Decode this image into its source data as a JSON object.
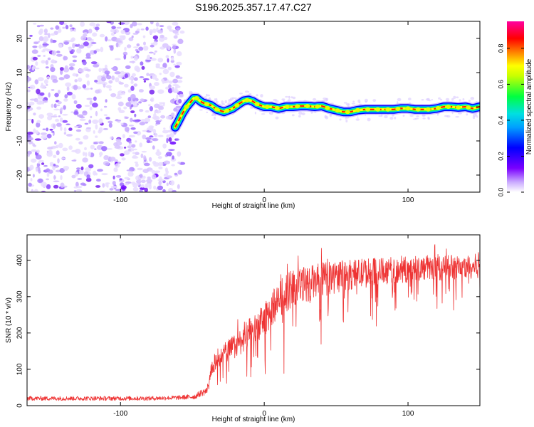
{
  "title": "S196.2025.357.17.47.C27",
  "chart_data": [
    {
      "type": "heatmap",
      "title": "S196.2025.357.17.47.C27",
      "xlabel": "Height of straight line (km)",
      "ylabel": "Frequency (Hz)",
      "xlim": [
        -165,
        150
      ],
      "ylim": [
        -25,
        25
      ],
      "xticks": [
        -100,
        0,
        100
      ],
      "yticks": [
        -20,
        -10,
        0,
        10,
        20
      ],
      "colorbar": {
        "label": "Normalized spectral amplitude",
        "range": [
          0,
          0.95
        ],
        "ticks": [
          "0.0",
          "0.2",
          "0.4",
          "0.6",
          "0.8"
        ],
        "tick_values": [
          0.0,
          0.2,
          0.4,
          0.6,
          0.8
        ],
        "colors": [
          "#ffffff",
          "#7a00ff",
          "#0000ff",
          "#00d0ff",
          "#00ff40",
          "#ffff00",
          "#ff8000",
          "#ff0000",
          "#ff00a0"
        ]
      },
      "noise_region": {
        "x_range": [
          -165,
          -57
        ],
        "f_range": [
          -25,
          25
        ],
        "amplitude": [
          0.02,
          0.12
        ]
      },
      "signal_track": {
        "x": [
          -62,
          -60,
          -57,
          -54,
          -51,
          -49,
          -47,
          -45,
          -43,
          -40,
          -37,
          -33,
          -28,
          -22,
          -17,
          -14,
          -11,
          -8,
          -5,
          0,
          5,
          10,
          15,
          20,
          25,
          30,
          35,
          40,
          45,
          50,
          55,
          60,
          65,
          70,
          75,
          80,
          85,
          90,
          95,
          100,
          105,
          110,
          115,
          120,
          125,
          130,
          135,
          140,
          145,
          150
        ],
        "frequency": [
          -6,
          -4.5,
          -2,
          0,
          1.5,
          2.5,
          2.5,
          1.8,
          1.2,
          0.8,
          0.4,
          -0.8,
          -1.5,
          -0.5,
          1.0,
          1.8,
          2.0,
          1.6,
          0.8,
          0,
          0,
          -0.5,
          0,
          0,
          0.2,
          0.2,
          0,
          0.2,
          -0.5,
          -1.0,
          -1.5,
          -1.5,
          -1.0,
          -0.8,
          -0.8,
          -0.8,
          -0.8,
          -0.8,
          -0.5,
          -0.5,
          -0.8,
          -0.8,
          -0.8,
          -0.5,
          0,
          0,
          -0.2,
          0,
          -0.5,
          0
        ]
      }
    },
    {
      "type": "line",
      "xlabel": "Height of straight line (km)",
      "ylabel": "SNR (10 * v/v)",
      "xlim": [
        -165,
        150
      ],
      "ylim": [
        0,
        470
      ],
      "xticks": [
        -100,
        0,
        100
      ],
      "yticks": [
        0,
        100,
        200,
        300,
        400
      ],
      "series": [
        {
          "name": "SNR",
          "color": "#ee3333",
          "envelope_x": [
            -165,
            -140,
            -120,
            -100,
            -80,
            -60,
            -48,
            -44,
            -40,
            -38,
            -36,
            -30,
            -20,
            -10,
            0,
            5,
            10,
            15,
            20,
            30,
            40,
            50,
            60,
            70,
            80,
            90,
            100,
            110,
            120,
            130,
            140,
            150
          ],
          "envelope_mean": [
            20,
            20,
            20,
            20,
            20,
            22,
            25,
            35,
            40,
            70,
            110,
            140,
            165,
            200,
            235,
            265,
            290,
            310,
            325,
            335,
            345,
            355,
            360,
            365,
            370,
            372,
            375,
            378,
            378,
            380,
            382,
            385
          ],
          "envelope_spread": [
            8,
            8,
            8,
            8,
            8,
            8,
            10,
            12,
            15,
            25,
            35,
            40,
            45,
            55,
            60,
            65,
            70,
            70,
            70,
            65,
            65,
            60,
            55,
            55,
            50,
            50,
            50,
            45,
            45,
            45,
            45,
            45
          ]
        }
      ]
    }
  ]
}
